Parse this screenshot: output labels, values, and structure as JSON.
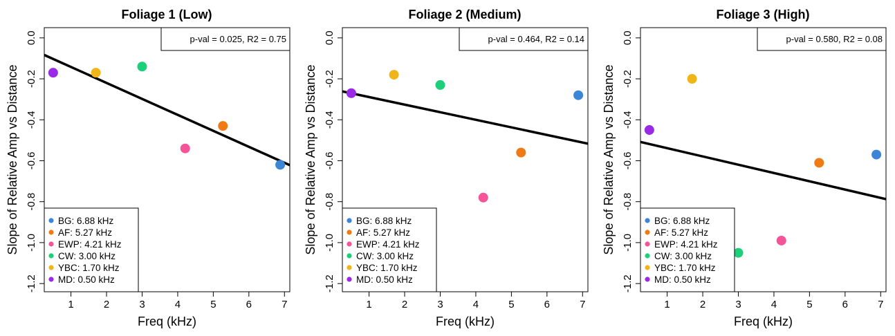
{
  "chart_data": [
    {
      "type": "scatter",
      "title": "Foliage 1 (Low)",
      "xlabel": "Freq (kHz)",
      "ylabel": "Slope of Relative Amp vs Distance",
      "xlim": [
        0.25,
        7.15
      ],
      "ylim": [
        -1.24,
        0.05
      ],
      "xticks": [
        1,
        2,
        3,
        4,
        5,
        6,
        7
      ],
      "yticks": [
        "0.0",
        "-0.2",
        "-0.4",
        "-0.6",
        "-0.8",
        "-1.0",
        "-1.2"
      ],
      "stats": "p-val = 0.025, R2 = 0.75",
      "fit_line": {
        "intercept": -0.064,
        "slope": -0.078
      },
      "points": [
        {
          "label": "BG",
          "x": 6.88,
          "y": -0.62,
          "color": "#3d85d6"
        },
        {
          "label": "AF",
          "x": 5.27,
          "y": -0.43,
          "color": "#f07b14"
        },
        {
          "label": "EWP",
          "x": 4.21,
          "y": -0.54,
          "color": "#f55598"
        },
        {
          "label": "CW",
          "x": 3.0,
          "y": -0.14,
          "color": "#1ccf7a"
        },
        {
          "label": "YBC",
          "x": 1.7,
          "y": -0.17,
          "color": "#f0b619"
        },
        {
          "label": "MD",
          "x": 0.5,
          "y": -0.17,
          "color": "#9a2ae6"
        }
      ],
      "legend": [
        "BG: 6.88 kHz",
        "AF: 5.27 kHz",
        "EWP: 4.21 kHz",
        "CW: 3.00 kHz",
        "YBC: 1.70 kHz",
        "MD: 0.50 kHz"
      ],
      "legend_position": "bottom-left",
      "stats_position": "top-right"
    },
    {
      "type": "scatter",
      "title": "Foliage 2 (Medium)",
      "xlabel": "Freq (kHz)",
      "ylabel": "Slope of Relative Amp vs Distance",
      "xlim": [
        0.25,
        7.15
      ],
      "ylim": [
        -1.24,
        0.05
      ],
      "xticks": [
        1,
        2,
        3,
        4,
        5,
        6,
        7
      ],
      "yticks": [
        "0.0",
        "-0.2",
        "-0.4",
        "-0.6",
        "-0.8",
        "-1.0",
        "-1.2"
      ],
      "stats": "p-val = 0.464, R2 = 0.14",
      "fit_line": {
        "intercept": -0.252,
        "slope": -0.037
      },
      "points": [
        {
          "label": "BG",
          "x": 6.88,
          "y": -0.28,
          "color": "#3d85d6"
        },
        {
          "label": "AF",
          "x": 5.27,
          "y": -0.56,
          "color": "#f07b14"
        },
        {
          "label": "EWP",
          "x": 4.21,
          "y": -0.78,
          "color": "#f55598"
        },
        {
          "label": "CW",
          "x": 3.0,
          "y": -0.23,
          "color": "#1ccf7a"
        },
        {
          "label": "YBC",
          "x": 1.7,
          "y": -0.18,
          "color": "#f0b619"
        },
        {
          "label": "MD",
          "x": 0.5,
          "y": -0.27,
          "color": "#9a2ae6"
        }
      ],
      "legend": [
        "BG: 6.88 kHz",
        "AF: 5.27 kHz",
        "EWP: 4.21 kHz",
        "CW: 3.00 kHz",
        "YBC: 1.70 kHz",
        "MD: 0.50 kHz"
      ],
      "legend_position": "bottom-left",
      "stats_position": "top-right"
    },
    {
      "type": "scatter",
      "title": "Foliage 3 (High)",
      "xlabel": "Freq (kHz)",
      "ylabel": "Slope of Relative Amp vs Distance",
      "xlim": [
        0.25,
        7.15
      ],
      "ylim": [
        -1.24,
        0.05
      ],
      "xticks": [
        1,
        2,
        3,
        4,
        5,
        6,
        7
      ],
      "yticks": [
        "0.0",
        "-0.2",
        "-0.4",
        "-0.6",
        "-0.8",
        "-1.0",
        "-1.2"
      ],
      "stats": "p-val = 0.580, R2 = 0.08",
      "fit_line": {
        "intercept": -0.498,
        "slope": -0.0405
      },
      "points": [
        {
          "label": "BG",
          "x": 6.88,
          "y": -0.57,
          "color": "#3d85d6"
        },
        {
          "label": "AF",
          "x": 5.27,
          "y": -0.61,
          "color": "#f07b14"
        },
        {
          "label": "EWP",
          "x": 4.21,
          "y": -0.99,
          "color": "#f55598"
        },
        {
          "label": "CW",
          "x": 3.0,
          "y": -1.05,
          "color": "#1ccf7a"
        },
        {
          "label": "YBC",
          "x": 1.7,
          "y": -0.2,
          "color": "#f0b619"
        },
        {
          "label": "MD",
          "x": 0.5,
          "y": -0.45,
          "color": "#9a2ae6"
        }
      ],
      "legend": [
        "BG: 6.88 kHz",
        "AF: 5.27 kHz",
        "EWP: 4.21 kHz",
        "CW: 3.00 kHz",
        "YBC: 1.70 kHz",
        "MD: 0.50 kHz"
      ],
      "legend_position": "bottom-left",
      "stats_position": "top-right"
    }
  ]
}
